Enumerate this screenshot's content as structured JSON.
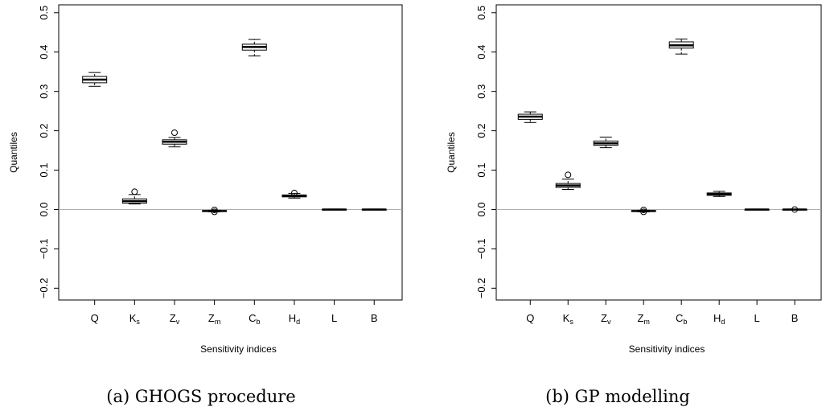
{
  "chart_data": [
    {
      "type": "box",
      "caption": "(a) GHOGS procedure",
      "xlabel": "Sensitivity indices",
      "ylabel": "Quantiles",
      "ylim": [
        -0.23,
        0.52
      ],
      "yticks": [
        "−0.2",
        "−0.1",
        "0.0",
        "0.1",
        "0.2",
        "0.3",
        "0.4",
        "0.5"
      ],
      "ytick_values": [
        -0.2,
        -0.1,
        0.0,
        0.1,
        0.2,
        0.3,
        0.4,
        0.5
      ],
      "reference_line": 0.0,
      "categories": [
        {
          "base": "Q",
          "sub": ""
        },
        {
          "base": "K",
          "sub": "s"
        },
        {
          "base": "Z",
          "sub": "v"
        },
        {
          "base": "Z",
          "sub": "m"
        },
        {
          "base": "C",
          "sub": "b"
        },
        {
          "base": "H",
          "sub": "d"
        },
        {
          "base": "L",
          "sub": ""
        },
        {
          "base": "B",
          "sub": ""
        }
      ],
      "boxes": [
        {
          "min": 0.313,
          "q1": 0.322,
          "median": 0.33,
          "q3": 0.338,
          "max": 0.348,
          "outliers": []
        },
        {
          "min": 0.014,
          "q1": 0.016,
          "median": 0.021,
          "q3": 0.027,
          "max": 0.038,
          "outliers": [
            0.045
          ]
        },
        {
          "min": 0.159,
          "q1": 0.166,
          "median": 0.172,
          "q3": 0.177,
          "max": 0.183,
          "outliers": [
            0.195
          ]
        },
        {
          "min": -0.006,
          "q1": -0.005,
          "median": -0.004,
          "q3": -0.003,
          "max": -0.002,
          "outliers": [
            -0.006,
            -0.001
          ]
        },
        {
          "min": 0.39,
          "q1": 0.405,
          "median": 0.413,
          "q3": 0.42,
          "max": 0.432,
          "outliers": []
        },
        {
          "min": 0.029,
          "q1": 0.032,
          "median": 0.035,
          "q3": 0.037,
          "max": 0.041,
          "outliers": [
            0.042
          ]
        },
        {
          "min": -0.001,
          "q1": -0.0005,
          "median": 0.0,
          "q3": 0.0005,
          "max": 0.001,
          "outliers": []
        },
        {
          "min": -0.001,
          "q1": -0.0005,
          "median": 0.0,
          "q3": 0.0005,
          "max": 0.001,
          "outliers": []
        }
      ]
    },
    {
      "type": "box",
      "caption": "(b) GP modelling",
      "xlabel": "Sensitivity indices",
      "ylabel": "Quantiles",
      "ylim": [
        -0.23,
        0.52
      ],
      "yticks": [
        "−0.2",
        "−0.1",
        "0.0",
        "0.1",
        "0.2",
        "0.3",
        "0.4",
        "0.5"
      ],
      "ytick_values": [
        -0.2,
        -0.1,
        0.0,
        0.1,
        0.2,
        0.3,
        0.4,
        0.5
      ],
      "reference_line": 0.0,
      "categories": [
        {
          "base": "Q",
          "sub": ""
        },
        {
          "base": "K",
          "sub": "s"
        },
        {
          "base": "Z",
          "sub": "v"
        },
        {
          "base": "Z",
          "sub": "m"
        },
        {
          "base": "C",
          "sub": "b"
        },
        {
          "base": "H",
          "sub": "d"
        },
        {
          "base": "L",
          "sub": ""
        },
        {
          "base": "B",
          "sub": ""
        }
      ],
      "boxes": [
        {
          "min": 0.221,
          "q1": 0.229,
          "median": 0.236,
          "q3": 0.242,
          "max": 0.248,
          "outliers": []
        },
        {
          "min": 0.051,
          "q1": 0.056,
          "median": 0.061,
          "q3": 0.066,
          "max": 0.077,
          "outliers": [
            0.088
          ]
        },
        {
          "min": 0.157,
          "q1": 0.163,
          "median": 0.168,
          "q3": 0.174,
          "max": 0.184,
          "outliers": []
        },
        {
          "min": -0.006,
          "q1": -0.005,
          "median": -0.004,
          "q3": -0.003,
          "max": -0.002,
          "outliers": [
            -0.006,
            -0.001
          ]
        },
        {
          "min": 0.395,
          "q1": 0.41,
          "median": 0.417,
          "q3": 0.426,
          "max": 0.433,
          "outliers": []
        },
        {
          "min": 0.033,
          "q1": 0.036,
          "median": 0.039,
          "q3": 0.042,
          "max": 0.046,
          "outliers": []
        },
        {
          "min": -0.001,
          "q1": -0.0005,
          "median": 0.0,
          "q3": 0.0005,
          "max": 0.001,
          "outliers": []
        },
        {
          "min": -0.001,
          "q1": -0.0005,
          "median": 0.0,
          "q3": 0.0005,
          "max": 0.001,
          "outliers": [
            0.0
          ]
        }
      ]
    }
  ]
}
